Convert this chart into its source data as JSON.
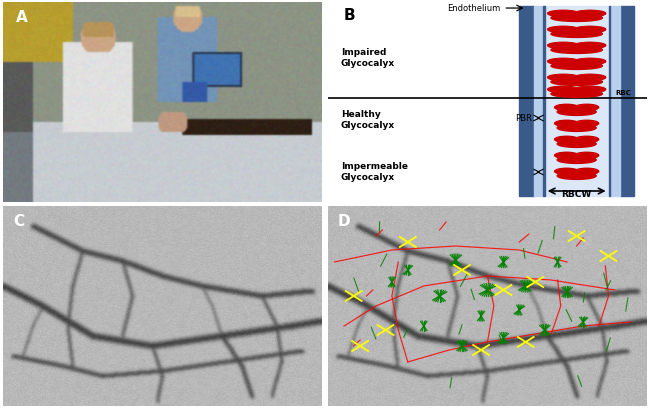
{
  "panel_labels": [
    "A",
    "B",
    "C",
    "D"
  ],
  "panel_label_fontsize": 11,
  "panel_label_fontweight": "bold",
  "vessel_blue_dark": "#3a5a8a",
  "vessel_blue_light": "#b8d0ee",
  "vessel_blue_mid": "#8ab0d8",
  "vessel_center_light": "#dce8f8",
  "rbc_color": "#cc0000",
  "text_labels": {
    "endothelium": "Endothelium",
    "impaired": "Impaired\nGlycocalyx",
    "healthy": "Healthy\nGlycocalyx",
    "impermeable": "Impermeable\nGlycocalyx",
    "pbr": "PBR",
    "rbc": "RBC",
    "rbcw": "RBCW"
  }
}
